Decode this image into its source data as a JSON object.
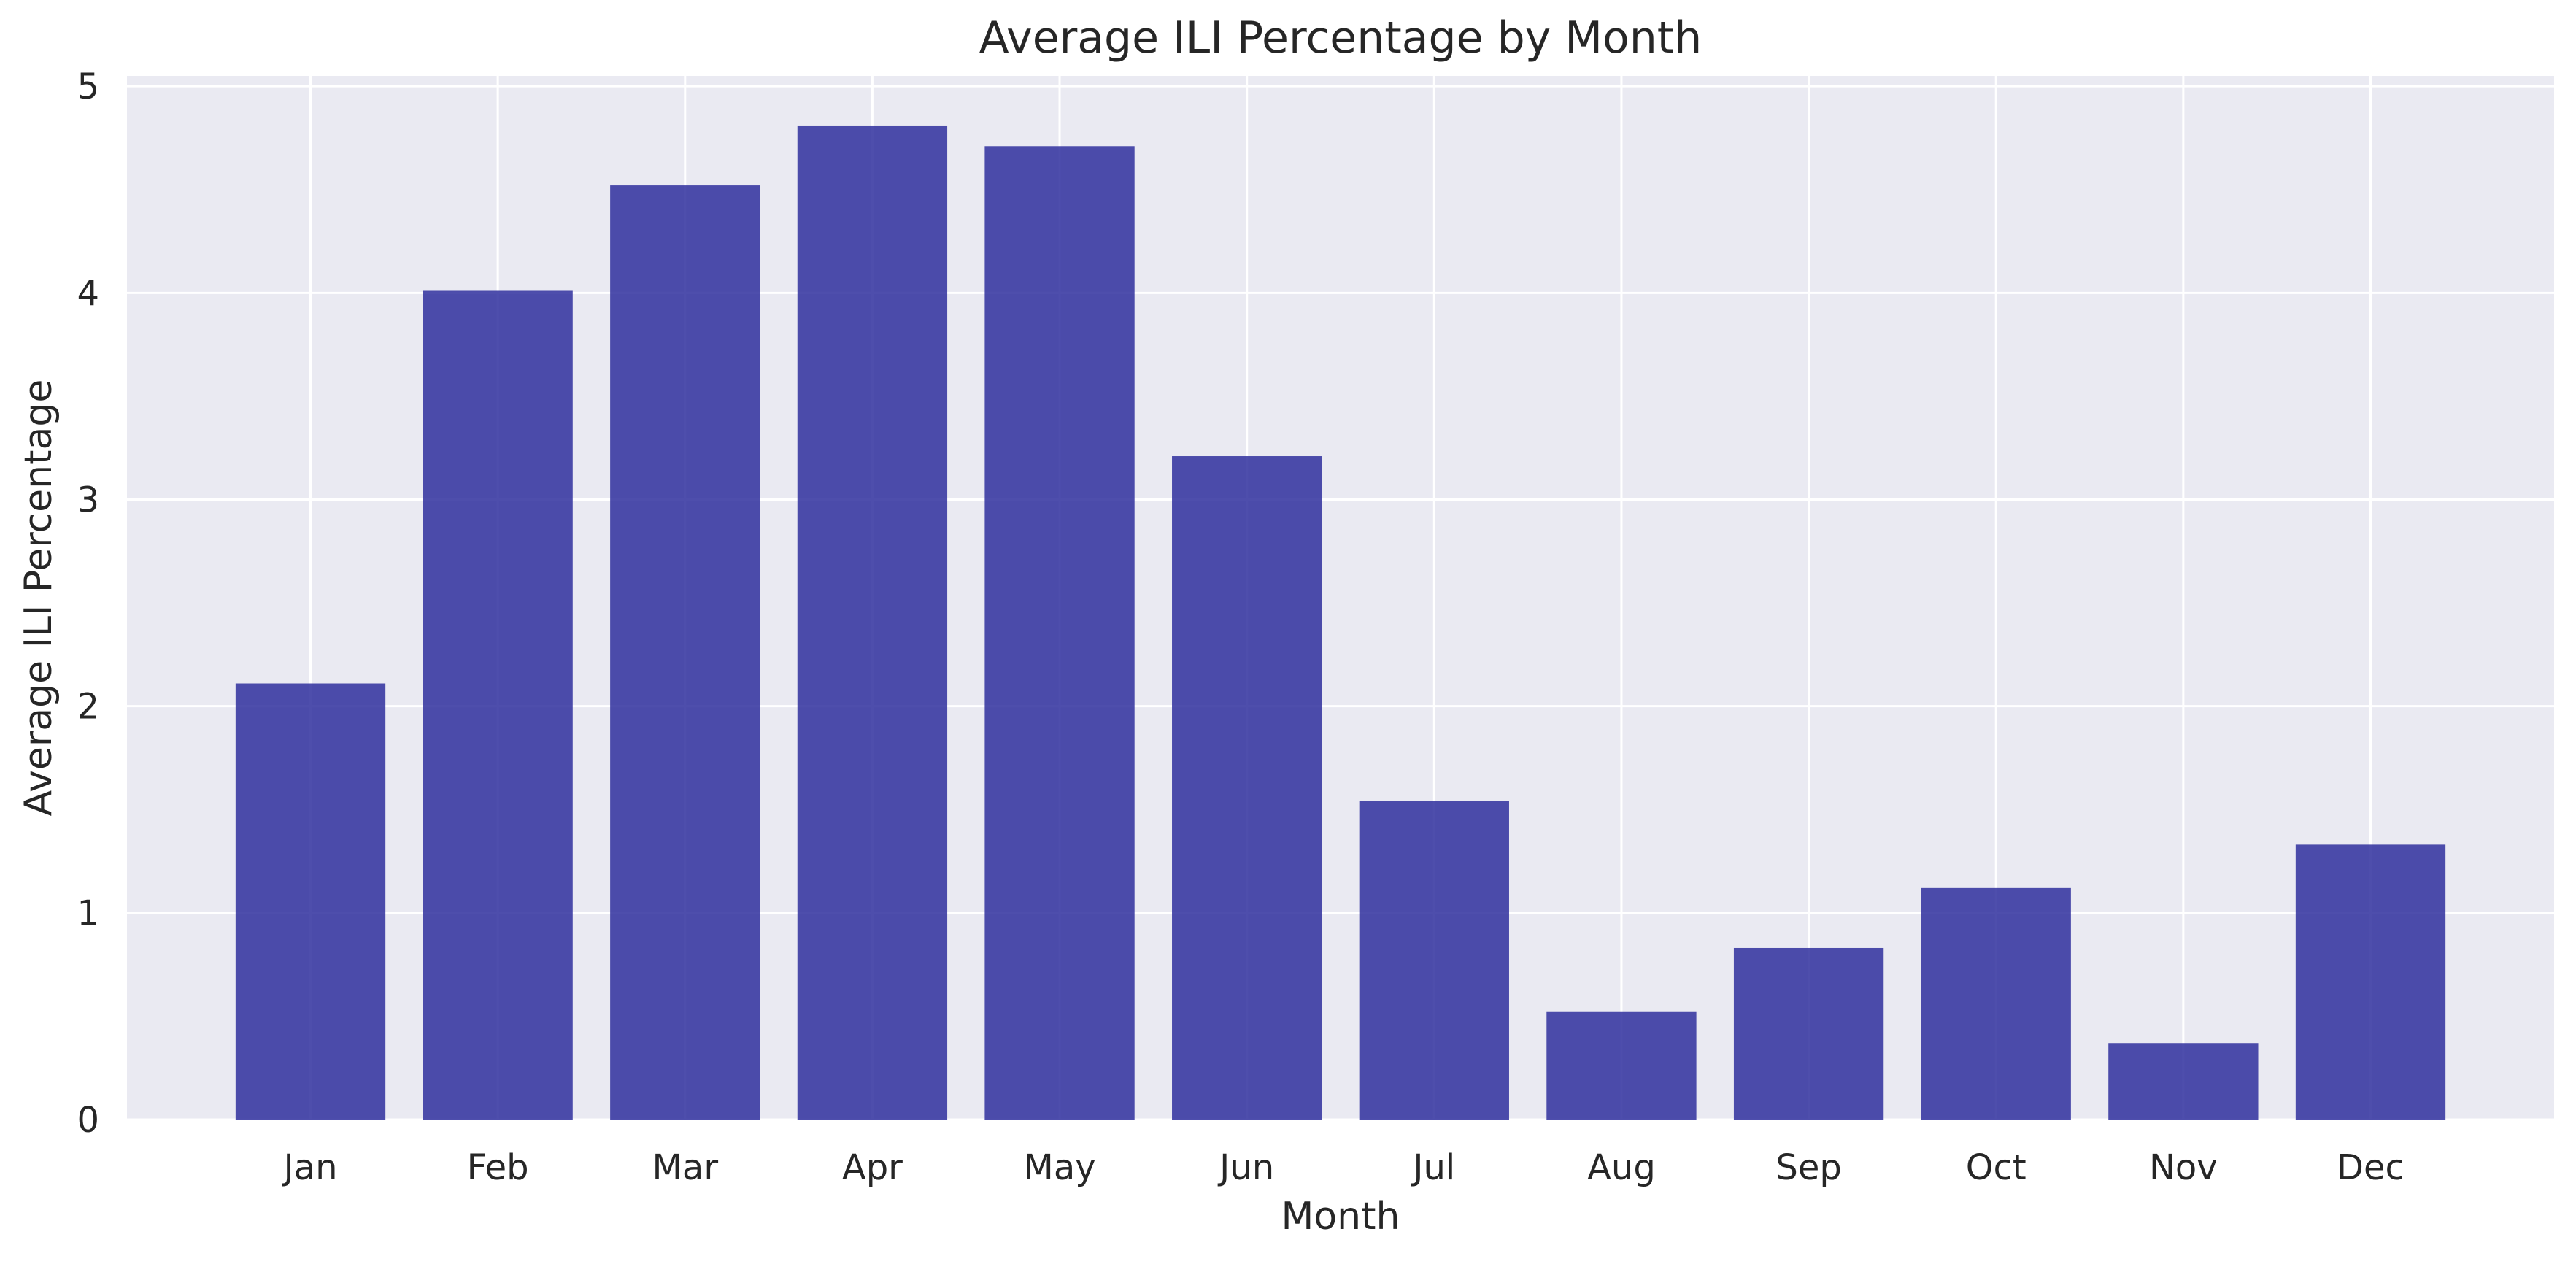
{
  "chart_data": {
    "type": "bar",
    "title": "Average ILI Percentage by Month",
    "xlabel": "Month",
    "ylabel": "Average ILI Percentage",
    "categories": [
      "Jan",
      "Feb",
      "Mar",
      "Apr",
      "May",
      "Jun",
      "Jul",
      "Aug",
      "Sep",
      "Oct",
      "Nov",
      "Dec"
    ],
    "values": [
      2.11,
      4.01,
      4.52,
      4.81,
      4.71,
      3.21,
      1.54,
      0.52,
      0.83,
      1.12,
      0.37,
      1.33
    ],
    "ylim": [
      0,
      5.05
    ],
    "yticks": [
      0,
      1,
      2,
      3,
      4,
      5
    ],
    "grid": true,
    "colors": {
      "bar": "#2f2f9d",
      "plot_background": "#eaeaf2",
      "grid": "#ffffff"
    }
  }
}
